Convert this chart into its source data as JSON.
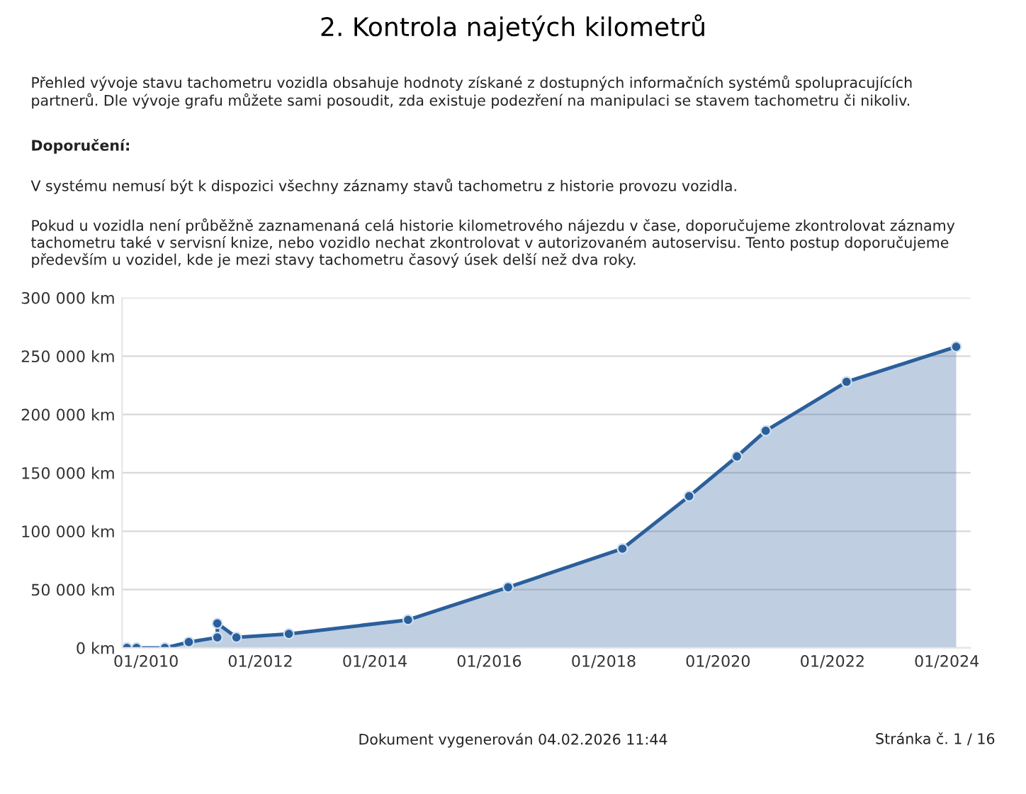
{
  "chart_data": {
    "type": "area",
    "title": "2. Kontrola najetých kilometrů",
    "annotations": [
      "Přehled vývoje stavu tachometru vozidla obsahuje hodnoty získané z dostupných informačních systémů spolupracujících partnerů. Dle vývoje grafu můžete sami posoudit, zda existuje podezření na manipulaci se stavem tachometru či nikoliv.",
      "Doporučení:",
      "V systému nemusí být k dispozici všechny záznamy stavů tachometru z historie provozu vozidla.",
      "Pokud u vozidla není průběžně zaznamenaná celá historie kilometrového nájezdu v čase, doporučujeme zkontrolovat záznamy tachometru také v servisní knize, nebo vozidlo nechat zkontrolovat v autorizovaném autoservisu. Tento postup doporučujeme především u vozidel, kde je mezi stavy tachometru časový úsek delší než dva roky.",
      "Dokument vygenerován 04.02.2026 11:44",
      "Stránka č. 1 / 16"
    ],
    "x": [
      "2009-09",
      "2009-11",
      "2010-05",
      "2010-10",
      "2011-04",
      "2011-04",
      "2011-08",
      "2012-07",
      "2014-08",
      "2016-05",
      "2018-05",
      "2019-07",
      "2020-05",
      "2020-11",
      "2022-04",
      "2024-03"
    ],
    "series": [
      {
        "color": "#2b5f9c",
        "values": [
          0,
          0,
          0,
          5000,
          9000,
          21000,
          9000,
          12000,
          24000,
          52000,
          85000,
          130000,
          164000,
          186000,
          228000,
          258000
        ]
      }
    ],
    "xlim": [
      "2009-08",
      "2024-06"
    ],
    "xticks": [
      {
        "value": "2010-01",
        "label": "01/2010"
      },
      {
        "value": "2012-01",
        "label": "01/2012"
      },
      {
        "value": "2014-01",
        "label": "01/2014"
      },
      {
        "value": "2016-01",
        "label": "01/2016"
      },
      {
        "value": "2018-01",
        "label": "01/2018"
      },
      {
        "value": "2020-01",
        "label": "01/2020"
      },
      {
        "value": "2022-01",
        "label": "01/2022"
      },
      {
        "value": "2024-01",
        "label": "01/2024"
      }
    ],
    "ylim": [
      0,
      300000
    ],
    "yticks": [
      {
        "value": 0,
        "label": "0 km"
      },
      {
        "value": 50000,
        "label": "50 000 km"
      },
      {
        "value": 100000,
        "label": "100 000 km"
      },
      {
        "value": 150000,
        "label": "150 000 km"
      },
      {
        "value": 200000,
        "label": "200 000 km"
      },
      {
        "value": 250000,
        "label": "250 000 km"
      },
      {
        "value": 300000,
        "label": "300 000 km"
      }
    ],
    "grid": "y",
    "marker": "circle",
    "line_style": "solid",
    "legend": false
  }
}
